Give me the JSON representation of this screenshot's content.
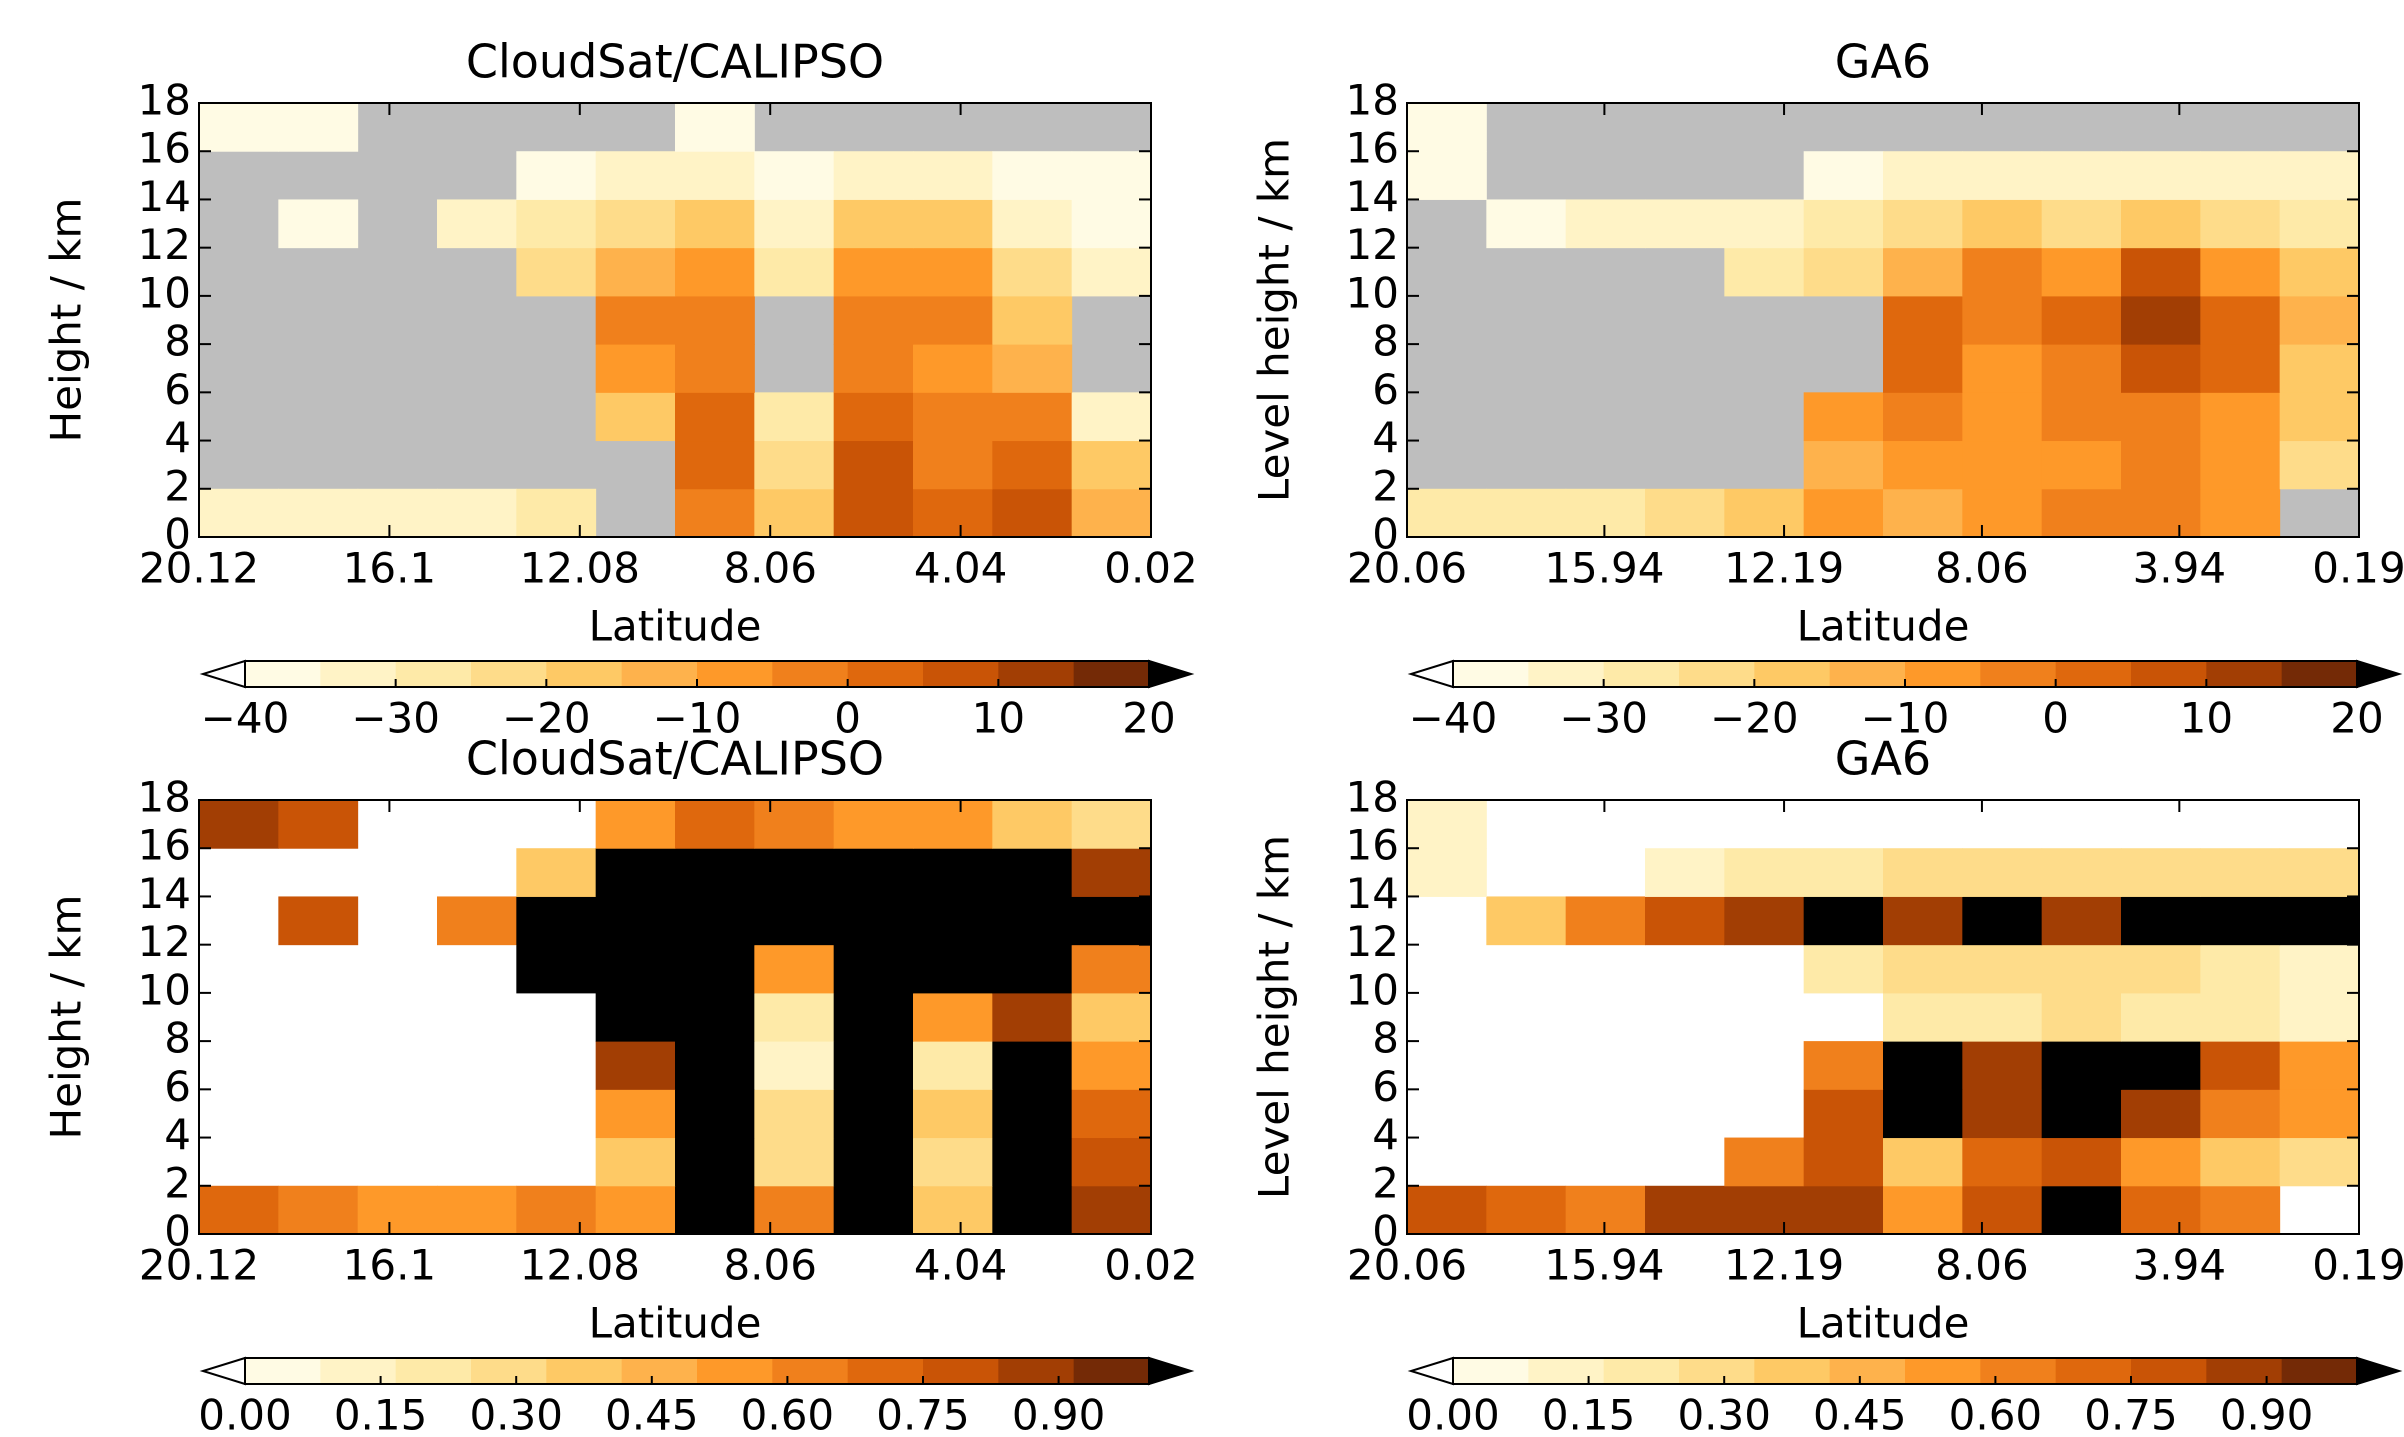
{
  "chart_data": [
    {
      "type": "heatmap",
      "title": "CloudSat/CALIPSO",
      "xlabel": "Latitude",
      "ylabel": "Height / km",
      "xlim": [
        20.12,
        0.02
      ],
      "xticks": [
        20.12,
        16.1,
        12.08,
        8.06,
        4.04,
        0.02
      ],
      "ylim": [
        0,
        18
      ],
      "yticks": [
        0,
        2,
        4,
        6,
        8,
        10,
        12,
        14,
        16,
        18
      ],
      "background": "#bebebe",
      "z": [
        [
          -35,
          -35,
          -35,
          -35,
          -30,
          null,
          -5,
          -20,
          5,
          0,
          5,
          -15
        ],
        [
          null,
          null,
          null,
          null,
          null,
          null,
          0,
          -25,
          5,
          -5,
          0,
          -20
        ],
        [
          null,
          null,
          null,
          null,
          null,
          -20,
          0,
          -30,
          0,
          -5,
          -5,
          -35
        ],
        [
          null,
          null,
          null,
          null,
          null,
          -10,
          -5,
          null,
          -5,
          -10,
          -15,
          null
        ],
        [
          null,
          null,
          null,
          null,
          null,
          -5,
          -5,
          null,
          -5,
          -5,
          -20,
          null
        ],
        [
          null,
          null,
          null,
          null,
          -25,
          -15,
          -10,
          -30,
          -10,
          -10,
          -25,
          -35
        ],
        [
          null,
          -38,
          null,
          -33,
          -30,
          -25,
          -20,
          -33,
          -20,
          -20,
          -35,
          -38
        ],
        [
          null,
          null,
          null,
          null,
          -38,
          -35,
          -35,
          -38,
          -35,
          -35,
          -38,
          -38
        ],
        [
          -38,
          -38,
          null,
          null,
          null,
          null,
          -40,
          null,
          null,
          null,
          null,
          null
        ]
      ],
      "colorbar": {
        "clim": [
          -40,
          20
        ],
        "ticks": [
          {
            "value": -40,
            "label": "−40"
          },
          {
            "value": -30,
            "label": "−30"
          },
          {
            "value": -20,
            "label": "−20"
          },
          {
            "value": -10,
            "label": "−10"
          },
          0,
          10,
          20
        ],
        "colors": [
          "#fffbe4",
          "#fff3c6",
          "#feeaa8",
          "#fedc8a",
          "#fec965",
          "#feb24c",
          "#fe9929",
          "#f0801c",
          "#df680d",
          "#c95406",
          "#a23e04",
          "#742a06"
        ],
        "under_color": "#ffffff",
        "over_color": "#000000"
      }
    },
    {
      "type": "heatmap",
      "title": "GA6",
      "xlabel": "Latitude",
      "ylabel": "Level height / km",
      "xlim": [
        20.06,
        0.19
      ],
      "xticks": [
        20.06,
        15.94,
        12.19,
        8.06,
        3.94,
        0.19
      ],
      "ylim": [
        0,
        18
      ],
      "yticks": [
        0,
        2,
        4,
        6,
        8,
        10,
        12,
        14,
        16,
        18
      ],
      "background": "#bebebe",
      "z": [
        [
          -30,
          -30,
          -30,
          -25,
          -20,
          -10,
          -15,
          -10,
          -5,
          -5,
          -10,
          null
        ],
        [
          null,
          null,
          null,
          null,
          null,
          -15,
          -10,
          -10,
          -10,
          -5,
          -10,
          -25
        ],
        [
          null,
          null,
          null,
          null,
          null,
          -10,
          -5,
          -10,
          -5,
          -5,
          -10,
          -20
        ],
        [
          null,
          null,
          null,
          null,
          null,
          null,
          0,
          -10,
          -5,
          5,
          0,
          -20
        ],
        [
          null,
          null,
          null,
          null,
          null,
          null,
          0,
          -5,
          0,
          10,
          0,
          -15
        ],
        [
          null,
          null,
          null,
          null,
          -30,
          -25,
          -15,
          -5,
          -10,
          5,
          -10,
          -20
        ],
        [
          null,
          -38,
          -35,
          -35,
          -33,
          -30,
          -25,
          -20,
          -25,
          -20,
          -25,
          -30
        ],
        [
          -38,
          null,
          null,
          null,
          null,
          -38,
          -35,
          -35,
          -35,
          -35,
          -35,
          -35
        ],
        [
          -38,
          null,
          null,
          null,
          null,
          null,
          null,
          null,
          null,
          null,
          null,
          null
        ]
      ],
      "colorbar": {
        "clim": [
          -40,
          20
        ],
        "ticks": [
          {
            "value": -40,
            "label": "−40"
          },
          {
            "value": -30,
            "label": "−30"
          },
          {
            "value": -20,
            "label": "−20"
          },
          {
            "value": -10,
            "label": "−10"
          },
          0,
          10,
          20
        ],
        "colors": [
          "#fffbe4",
          "#fff3c6",
          "#feeaa8",
          "#fedc8a",
          "#fec965",
          "#feb24c",
          "#fe9929",
          "#f0801c",
          "#df680d",
          "#c95406",
          "#a23e04",
          "#742a06"
        ],
        "under_color": "#ffffff",
        "over_color": "#000000"
      }
    },
    {
      "type": "heatmap",
      "title": "CloudSat/CALIPSO",
      "xlabel": "Latitude",
      "ylabel": "Height / km",
      "xlim": [
        20.12,
        0.02
      ],
      "xticks": [
        20.12,
        16.1,
        12.08,
        8.06,
        4.04,
        0.02
      ],
      "ylim": [
        0,
        18
      ],
      "yticks": [
        0,
        2,
        4,
        6,
        8,
        10,
        12,
        14,
        16,
        18
      ],
      "background": "#ffffff",
      "z": [
        [
          0.7,
          0.6,
          0.5,
          0.5,
          0.6,
          0.5,
          1.0,
          0.6,
          1.0,
          0.4,
          1.0,
          0.9
        ],
        [
          null,
          null,
          null,
          null,
          null,
          0.4,
          1.0,
          0.3,
          1.0,
          0.3,
          1.0,
          0.8
        ],
        [
          null,
          null,
          null,
          null,
          null,
          0.5,
          1.0,
          0.3,
          1.0,
          0.4,
          1.0,
          0.7
        ],
        [
          null,
          null,
          null,
          null,
          null,
          0.9,
          1.0,
          0.1,
          1.0,
          0.2,
          1.0,
          0.5
        ],
        [
          null,
          null,
          null,
          null,
          null,
          1.0,
          1.0,
          0.2,
          1.0,
          0.5,
          0.9,
          0.4
        ],
        [
          null,
          null,
          null,
          null,
          1.0,
          1.0,
          1.0,
          0.5,
          1.0,
          1.0,
          1.0,
          0.6
        ],
        [
          null,
          0.8,
          null,
          0.6,
          1.0,
          1.0,
          1.0,
          1.0,
          1.0,
          1.0,
          1.0,
          1.0
        ],
        [
          null,
          null,
          null,
          null,
          0.4,
          1.0,
          1.0,
          1.0,
          1.0,
          1.0,
          1.0,
          0.9
        ],
        [
          0.9,
          0.8,
          null,
          null,
          null,
          0.5,
          0.7,
          0.6,
          0.5,
          0.5,
          0.4,
          0.3
        ]
      ],
      "colorbar": {
        "clim": [
          0,
          1
        ],
        "ticks": [
          {
            "value": 0,
            "label": "0.00"
          },
          {
            "value": 0.15,
            "label": "0.15"
          },
          {
            "value": 0.3,
            "label": "0.30"
          },
          {
            "value": 0.45,
            "label": "0.45"
          },
          {
            "value": 0.6,
            "label": "0.60"
          },
          {
            "value": 0.75,
            "label": "0.75"
          },
          {
            "value": 0.9,
            "label": "0.90"
          }
        ],
        "colors": [
          "#fffbe4",
          "#fff3c6",
          "#feeaa8",
          "#fedc8a",
          "#fec965",
          "#feb24c",
          "#fe9929",
          "#f0801c",
          "#df680d",
          "#c95406",
          "#a23e04",
          "#742a06"
        ],
        "under_color": "#ffffff",
        "over_color": "#000000"
      }
    },
    {
      "type": "heatmap",
      "title": "GA6",
      "xlabel": "Latitude",
      "ylabel": "Level height / km",
      "xlim": [
        20.06,
        0.19
      ],
      "xticks": [
        20.06,
        15.94,
        12.19,
        8.06,
        3.94,
        0.19
      ],
      "ylim": [
        0,
        18
      ],
      "yticks": [
        0,
        2,
        4,
        6,
        8,
        10,
        12,
        14,
        16,
        18
      ],
      "background": "#ffffff",
      "z": [
        [
          0.8,
          0.7,
          0.6,
          0.9,
          0.9,
          0.9,
          0.5,
          0.8,
          1.0,
          0.7,
          0.6,
          null
        ],
        [
          null,
          null,
          null,
          null,
          0.6,
          0.8,
          0.4,
          0.7,
          0.8,
          0.5,
          0.4,
          0.3
        ],
        [
          null,
          null,
          null,
          null,
          null,
          0.8,
          1.0,
          0.9,
          1.0,
          0.9,
          0.6,
          0.5
        ],
        [
          null,
          null,
          null,
          null,
          null,
          0.6,
          1.0,
          0.9,
          1.0,
          1.0,
          0.8,
          0.5
        ],
        [
          null,
          null,
          null,
          null,
          null,
          null,
          0.2,
          0.2,
          0.3,
          0.2,
          0.2,
          0.1
        ],
        [
          null,
          null,
          null,
          null,
          null,
          0.2,
          0.3,
          0.3,
          0.3,
          0.3,
          0.2,
          0.1
        ],
        [
          null,
          0.4,
          0.6,
          0.8,
          0.9,
          1.0,
          0.9,
          1.0,
          0.9,
          1.0,
          1.0,
          1.0
        ],
        [
          0.1,
          null,
          null,
          0.1,
          0.2,
          0.2,
          0.3,
          0.3,
          0.3,
          0.3,
          0.3,
          0.3
        ],
        [
          0.1,
          null,
          null,
          null,
          null,
          null,
          null,
          null,
          null,
          null,
          null,
          null
        ]
      ],
      "colorbar": {
        "clim": [
          0,
          1
        ],
        "ticks": [
          {
            "value": 0,
            "label": "0.00"
          },
          {
            "value": 0.15,
            "label": "0.15"
          },
          {
            "value": 0.3,
            "label": "0.30"
          },
          {
            "value": 0.45,
            "label": "0.45"
          },
          {
            "value": 0.6,
            "label": "0.60"
          },
          {
            "value": 0.75,
            "label": "0.75"
          },
          {
            "value": 0.9,
            "label": "0.90"
          }
        ],
        "colors": [
          "#fffbe4",
          "#fff3c6",
          "#feeaa8",
          "#fedc8a",
          "#fec965",
          "#feb24c",
          "#fe9929",
          "#f0801c",
          "#df680d",
          "#c95406",
          "#a23e04",
          "#742a06"
        ],
        "under_color": "#ffffff",
        "over_color": "#000000"
      }
    }
  ]
}
